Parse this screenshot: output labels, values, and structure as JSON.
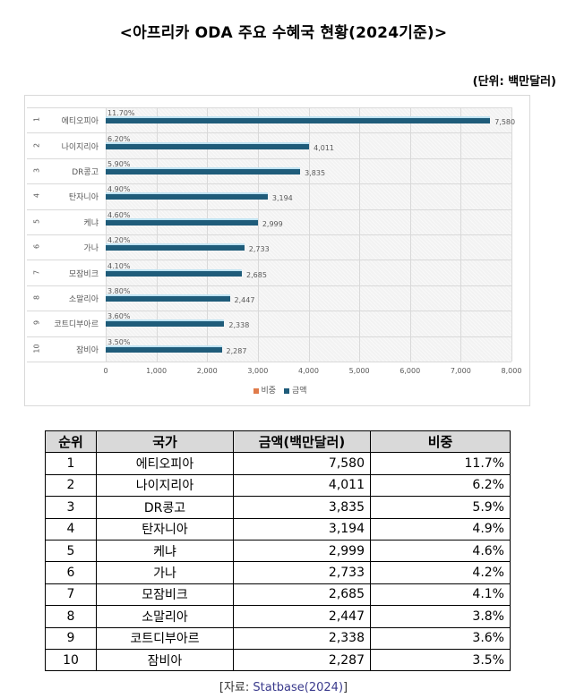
{
  "title": "<아프리카 ODA 주요 수혜국 현황(2024기준)>",
  "unit": "(단위:  백만달러)",
  "colors": {
    "amount_bar": "#1f5c7a",
    "share_legend": "#e07b4a",
    "header_bg": "#d9d9d9"
  },
  "chart_data": {
    "type": "bar",
    "orientation": "horizontal",
    "title": "",
    "categories": [
      "에티오피아",
      "나이지리아",
      "DR콩고",
      "탄자니아",
      "케냐",
      "가나",
      "모잠비크",
      "소말리아",
      "코트디부아르",
      "잠비아"
    ],
    "rank_labels": [
      "1",
      "2",
      "3",
      "4",
      "5",
      "6",
      "7",
      "8",
      "9",
      "10"
    ],
    "series": [
      {
        "name": "비중",
        "values": [
          11.7,
          6.2,
          5.9,
          4.9,
          4.6,
          4.2,
          4.1,
          3.8,
          3.6,
          3.5
        ],
        "labels": [
          "11.70%",
          "6.20%",
          "5.90%",
          "4.90%",
          "4.60%",
          "4.20%",
          "4.10%",
          "3.80%",
          "3.60%",
          "3.50%"
        ],
        "color": "#e07b4a"
      },
      {
        "name": "금액",
        "values": [
          7580,
          4011,
          3835,
          3194,
          2999,
          2733,
          2685,
          2447,
          2338,
          2287
        ],
        "labels": [
          "7,580",
          "4,011",
          "3,835",
          "3,194",
          "2,999",
          "2,733",
          "2,685",
          "2,447",
          "2,338",
          "2,287"
        ],
        "color": "#1f5c7a"
      }
    ],
    "xlabel": "",
    "ylabel": "",
    "xlim": [
      0,
      8000
    ],
    "xticks": [
      "0",
      "1,000",
      "2,000",
      "3,000",
      "4,000",
      "5,000",
      "6,000",
      "7,000",
      "8,000"
    ],
    "grid": true,
    "legend_position": "bottom"
  },
  "chart": {
    "legend": {
      "share": "비중",
      "amount": "금액"
    }
  },
  "table": {
    "headers": [
      "순위",
      "국가",
      "금액(백만달러)",
      "비중"
    ],
    "rows": [
      [
        "1",
        "에티오피아",
        "7,580",
        "11.7%"
      ],
      [
        "2",
        "나이지리아",
        "4,011",
        "6.2%"
      ],
      [
        "3",
        "DR콩고",
        "3,835",
        "5.9%"
      ],
      [
        "4",
        "탄자니아",
        "3,194",
        "4.9%"
      ],
      [
        "5",
        "케냐",
        "2,999",
        "4.6%"
      ],
      [
        "6",
        "가나",
        "2,733",
        "4.2%"
      ],
      [
        "7",
        "모잠비크",
        "2,685",
        "4.1%"
      ],
      [
        "8",
        "소말리아",
        "2,447",
        "3.8%"
      ],
      [
        "9",
        "코트디부아르",
        "2,338",
        "3.6%"
      ],
      [
        "10",
        "잠비아",
        "2,287",
        "3.5%"
      ]
    ]
  },
  "source": {
    "prefix": "[자료:  ",
    "link": "Statbase(2024)",
    "suffix": "]"
  }
}
